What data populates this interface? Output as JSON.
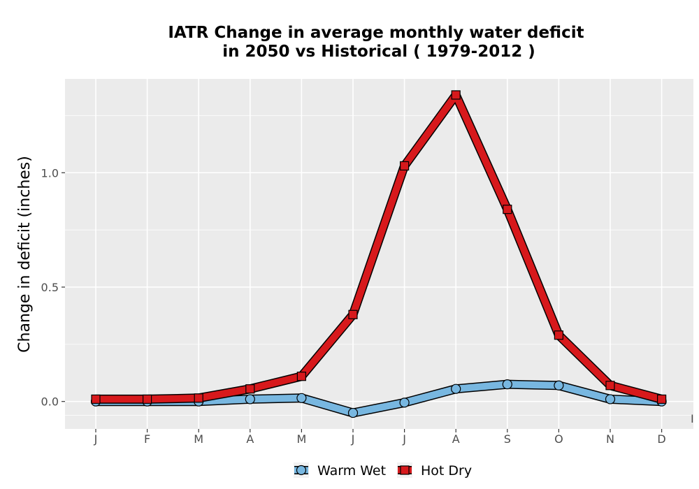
{
  "chart_data": {
    "type": "line",
    "title_line1": "IATR  Change in average monthly water deficit",
    "title_line2": "in 2050 vs Historical ( 1979-2012 )",
    "xlabel": "",
    "ylabel": "Change in deficit (inches)",
    "categories": [
      "J",
      "F",
      "M",
      "A",
      "M",
      "J",
      "J",
      "A",
      "S",
      "O",
      "N",
      "D"
    ],
    "ylim": [
      -0.12,
      1.41
    ],
    "yticks": [
      0.0,
      0.5,
      1.0
    ],
    "ytick_labels": [
      "0.0",
      "0.5",
      "1.0"
    ],
    "grid": true,
    "legend_position": "bottom",
    "series": [
      {
        "name": "Warm Wet",
        "color": "#78b7e0",
        "marker": "circle",
        "values": [
          0.0,
          0.0,
          0.0,
          0.01,
          0.015,
          -0.05,
          -0.005,
          0.055,
          0.075,
          0.07,
          0.01,
          0.0
        ]
      },
      {
        "name": "Hot Dry",
        "color": "#d7191c",
        "marker": "square",
        "values": [
          0.01,
          0.01,
          0.015,
          0.055,
          0.11,
          0.38,
          1.03,
          1.34,
          0.84,
          0.29,
          0.07,
          0.01
        ]
      }
    ],
    "edge_label": "I"
  }
}
